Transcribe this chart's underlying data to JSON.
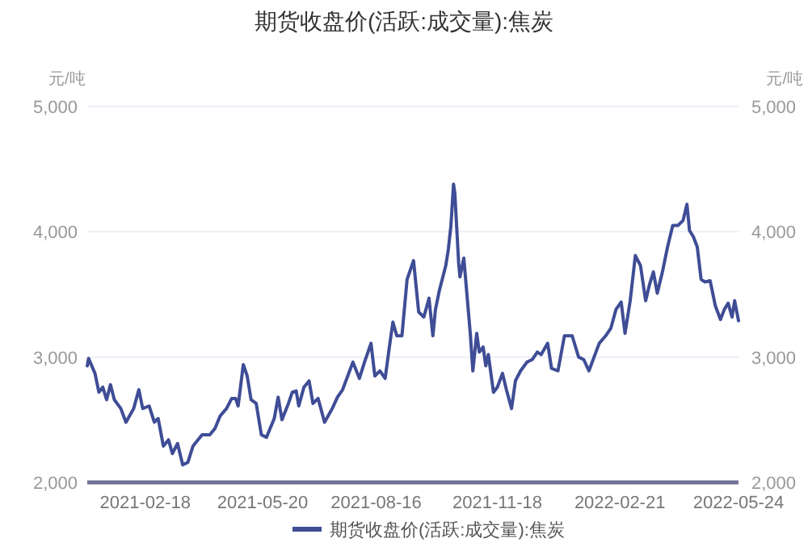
{
  "chart_data": {
    "type": "line",
    "title": "期货收盘价(活跃:成交量):焦炭",
    "ylabel": "元/吨",
    "y2label": "元/吨",
    "x": [
      "2021-01-04",
      "2021-01-05",
      "2021-01-10",
      "2021-01-13",
      "2021-01-16",
      "2021-01-19",
      "2021-01-22",
      "2021-01-25",
      "2021-01-30",
      "2021-02-03",
      "2021-02-09",
      "2021-02-13",
      "2021-02-16",
      "2021-02-21",
      "2021-02-25",
      "2021-02-28",
      "2021-03-04",
      "2021-03-08",
      "2021-03-11",
      "2021-03-15",
      "2021-03-19",
      "2021-03-23",
      "2021-03-27",
      "2021-04-03",
      "2021-04-09",
      "2021-04-13",
      "2021-04-17",
      "2021-04-22",
      "2021-04-26",
      "2021-04-29",
      "2021-05-01",
      "2021-05-05",
      "2021-05-08",
      "2021-05-11",
      "2021-05-15",
      "2021-05-19",
      "2021-05-23",
      "2021-05-29",
      "2021-06-01",
      "2021-06-04",
      "2021-06-09",
      "2021-06-12",
      "2021-06-15",
      "2021-06-17",
      "2021-06-21",
      "2021-06-25",
      "2021-06-28",
      "2021-07-02",
      "2021-07-07",
      "2021-07-13",
      "2021-07-17",
      "2021-07-21",
      "2021-07-25",
      "2021-07-29",
      "2021-08-03",
      "2021-08-07",
      "2021-08-12",
      "2021-08-15",
      "2021-08-19",
      "2021-08-23",
      "2021-08-26",
      "2021-08-29",
      "2021-09-01",
      "2021-09-05",
      "2021-09-09",
      "2021-09-14",
      "2021-09-18",
      "2021-09-22",
      "2021-09-26",
      "2021-09-29",
      "2021-10-01",
      "2021-10-04",
      "2021-10-09",
      "2021-10-11",
      "2021-10-13",
      "2021-10-15",
      "2021-10-16",
      "2021-10-19",
      "2021-10-20",
      "2021-10-23",
      "2021-10-28",
      "2021-10-30",
      "2021-11-02",
      "2021-11-04",
      "2021-11-07",
      "2021-11-09",
      "2021-11-11",
      "2021-11-15",
      "2021-11-18",
      "2021-11-22",
      "2021-11-25",
      "2021-11-29",
      "2021-12-02",
      "2021-12-06",
      "2021-12-11",
      "2021-12-15",
      "2021-12-19",
      "2021-12-22",
      "2021-12-27",
      "2021-12-30",
      "2022-01-04",
      "2022-01-09",
      "2022-01-15",
      "2022-01-20",
      "2022-01-24",
      "2022-01-28",
      "2022-02-01",
      "2022-02-05",
      "2022-02-10",
      "2022-02-14",
      "2022-02-18",
      "2022-02-22",
      "2022-02-25",
      "2022-03-01",
      "2022-03-05",
      "2022-03-09",
      "2022-03-13",
      "2022-03-16",
      "2022-03-19",
      "2022-03-22",
      "2022-03-26",
      "2022-03-30",
      "2022-04-03",
      "2022-04-07",
      "2022-04-11",
      "2022-04-14",
      "2022-04-16",
      "2022-04-19",
      "2022-04-22",
      "2022-04-25",
      "2022-04-28",
      "2022-05-02",
      "2022-05-06",
      "2022-05-10",
      "2022-05-13",
      "2022-05-16",
      "2022-05-19",
      "2022-05-21",
      "2022-05-24"
    ],
    "series": [
      {
        "name": "期货收盘价(活跃:成交量):焦炭",
        "color": "#3f4d96",
        "values": [
          2930,
          2990,
          2870,
          2720,
          2760,
          2660,
          2780,
          2660,
          2590,
          2480,
          2590,
          2740,
          2590,
          2610,
          2480,
          2510,
          2290,
          2340,
          2230,
          2310,
          2140,
          2160,
          2290,
          2380,
          2380,
          2430,
          2530,
          2590,
          2670,
          2670,
          2610,
          2940,
          2850,
          2660,
          2630,
          2380,
          2360,
          2510,
          2680,
          2500,
          2630,
          2720,
          2730,
          2610,
          2760,
          2810,
          2630,
          2670,
          2480,
          2590,
          2680,
          2740,
          2850,
          2960,
          2830,
          2960,
          3110,
          2850,
          2890,
          2830,
          3060,
          3280,
          3170,
          3170,
          3620,
          3770,
          3360,
          3320,
          3470,
          3170,
          3380,
          3530,
          3730,
          3860,
          4050,
          4380,
          4310,
          3750,
          3640,
          3790,
          3190,
          2890,
          3190,
          3040,
          3080,
          2930,
          3020,
          2720,
          2760,
          2870,
          2740,
          2590,
          2810,
          2890,
          2960,
          2980,
          3040,
          3020,
          3110,
          2910,
          2890,
          3170,
          3170,
          3000,
          2980,
          2890,
          3000,
          3110,
          3170,
          3230,
          3380,
          3440,
          3190,
          3450,
          3810,
          3730,
          3450,
          3580,
          3680,
          3510,
          3680,
          3880,
          4050,
          4050,
          4090,
          4220,
          4010,
          3960,
          3880,
          3620,
          3600,
          3610,
          3410,
          3300,
          3380,
          3430,
          3320,
          3450,
          3290
        ]
      }
    ],
    "xlim": [
      "2021-01-04",
      "2022-05-24"
    ],
    "xticks": [
      "2021-02-18",
      "2021-05-20",
      "2021-08-16",
      "2021-11-18",
      "2022-02-21",
      "2022-05-24"
    ],
    "ylim": [
      2000,
      5000
    ],
    "yticks": [
      {
        "value": 2000,
        "label": "2,000"
      },
      {
        "value": 3000,
        "label": "3,000"
      },
      {
        "value": 4000,
        "label": "4,000"
      },
      {
        "value": 5000,
        "label": "5,000"
      }
    ],
    "y2lim": [
      2000,
      5000
    ],
    "y2ticks": [
      {
        "value": 2000,
        "label": "2,000"
      },
      {
        "value": 3000,
        "label": "3,000"
      },
      {
        "value": 4000,
        "label": "4,000"
      },
      {
        "value": 5000,
        "label": "5,000"
      }
    ],
    "grid": "y",
    "legend": "bottom",
    "line_style": "solid",
    "marker": "none"
  }
}
